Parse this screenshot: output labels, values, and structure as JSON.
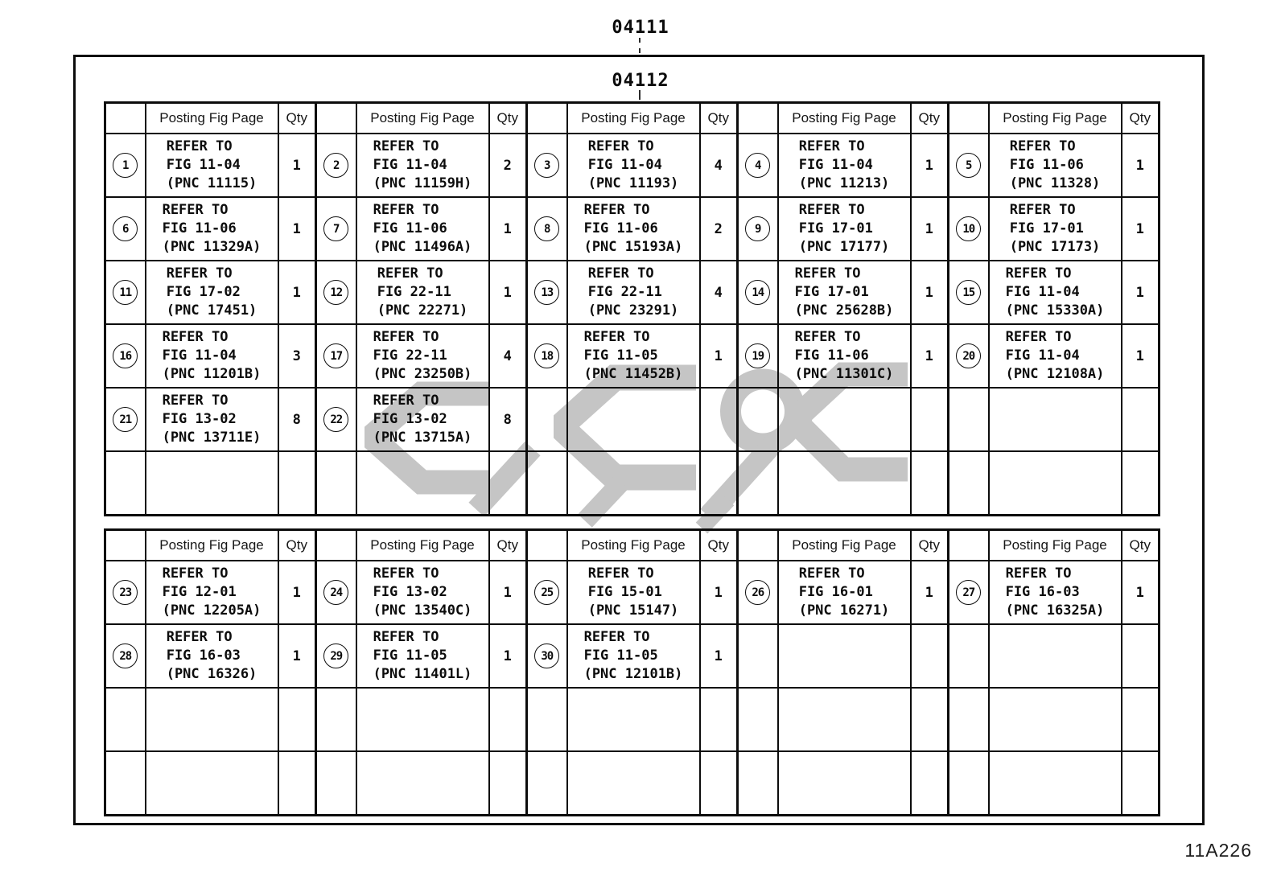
{
  "page": {
    "main_label": "04111",
    "sub_label": "04112",
    "doc_code": "11A226"
  },
  "table_header": {
    "fig": "Posting Fig Page",
    "qty": "Qty"
  },
  "refer_text": "REFER TO",
  "colors": {
    "ink": "#0c0c0c",
    "watermark": "#c5c5c5",
    "paper": "#ffffff"
  },
  "tables": [
    {
      "groups_per_row": 5,
      "trailing_empty_rows": 1,
      "entries": [
        {
          "num": "1",
          "fig": "FIG 11-04",
          "pnc": "(PNC 11115)",
          "qty": "1"
        },
        {
          "num": "2",
          "fig": "FIG 11-04",
          "pnc": "(PNC 11159H)",
          "qty": "2"
        },
        {
          "num": "3",
          "fig": "FIG 11-04",
          "pnc": "(PNC 11193)",
          "qty": "4"
        },
        {
          "num": "4",
          "fig": "FIG 11-04",
          "pnc": "(PNC 11213)",
          "qty": "1"
        },
        {
          "num": "5",
          "fig": "FIG 11-06",
          "pnc": "(PNC 11328)",
          "qty": "1"
        },
        {
          "num": "6",
          "fig": "FIG 11-06",
          "pnc": "(PNC 11329A)",
          "qty": "1"
        },
        {
          "num": "7",
          "fig": "FIG 11-06",
          "pnc": "(PNC 11496A)",
          "qty": "1"
        },
        {
          "num": "8",
          "fig": "FIG 11-06",
          "pnc": "(PNC 15193A)",
          "qty": "2"
        },
        {
          "num": "9",
          "fig": "FIG 17-01",
          "pnc": "(PNC 17177)",
          "qty": "1"
        },
        {
          "num": "10",
          "fig": "FIG 17-01",
          "pnc": "(PNC 17173)",
          "qty": "1"
        },
        {
          "num": "11",
          "fig": "FIG 17-02",
          "pnc": "(PNC 17451)",
          "qty": "1"
        },
        {
          "num": "12",
          "fig": "FIG 22-11",
          "pnc": "(PNC 22271)",
          "qty": "1"
        },
        {
          "num": "13",
          "fig": "FIG 22-11",
          "pnc": "(PNC 23291)",
          "qty": "4"
        },
        {
          "num": "14",
          "fig": "FIG 17-01",
          "pnc": "(PNC 25628B)",
          "qty": "1"
        },
        {
          "num": "15",
          "fig": "FIG 11-04",
          "pnc": "(PNC 15330A)",
          "qty": "1"
        },
        {
          "num": "16",
          "fig": "FIG 11-04",
          "pnc": "(PNC 11201B)",
          "qty": "3"
        },
        {
          "num": "17",
          "fig": "FIG 22-11",
          "pnc": "(PNC 23250B)",
          "qty": "4"
        },
        {
          "num": "18",
          "fig": "FIG 11-05",
          "pnc": "(PNC 11452B)",
          "qty": "1"
        },
        {
          "num": "19",
          "fig": "FIG 11-06",
          "pnc": "(PNC 11301C)",
          "qty": "1"
        },
        {
          "num": "20",
          "fig": "FIG 11-04",
          "pnc": "(PNC 12108A)",
          "qty": "1"
        },
        {
          "num": "21",
          "fig": "FIG 13-02",
          "pnc": "(PNC 13711E)",
          "qty": "8"
        },
        {
          "num": "22",
          "fig": "FIG 13-02",
          "pnc": "(PNC 13715A)",
          "qty": "8"
        }
      ]
    },
    {
      "groups_per_row": 5,
      "trailing_empty_rows": 2,
      "entries": [
        {
          "num": "23",
          "fig": "FIG 12-01",
          "pnc": "(PNC 12205A)",
          "qty": "1"
        },
        {
          "num": "24",
          "fig": "FIG 13-02",
          "pnc": "(PNC 13540C)",
          "qty": "1"
        },
        {
          "num": "25",
          "fig": "FIG 15-01",
          "pnc": "(PNC 15147)",
          "qty": "1"
        },
        {
          "num": "26",
          "fig": "FIG 16-01",
          "pnc": "(PNC 16271)",
          "qty": "1"
        },
        {
          "num": "27",
          "fig": "FIG 16-03",
          "pnc": "(PNC 16325A)",
          "qty": "1"
        },
        {
          "num": "28",
          "fig": "FIG 16-03",
          "pnc": "(PNC 16326)",
          "qty": "1"
        },
        {
          "num": "29",
          "fig": "FIG 11-05",
          "pnc": "(PNC 11401L)",
          "qty": "1"
        },
        {
          "num": "30",
          "fig": "FIG 11-05",
          "pnc": "(PNC 12101B)",
          "qty": "1"
        }
      ]
    }
  ]
}
